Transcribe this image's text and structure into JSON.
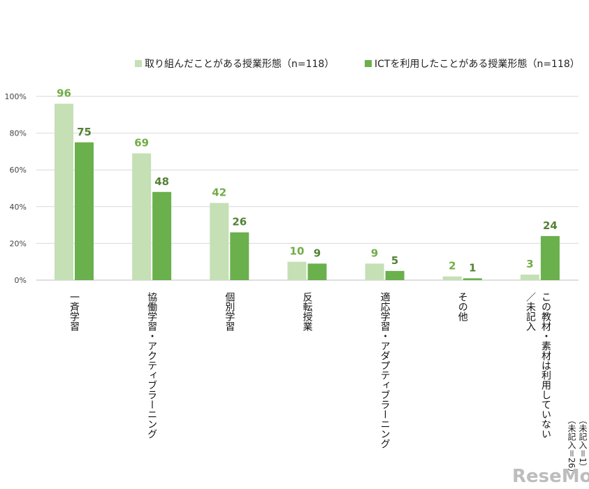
{
  "chart_data": {
    "type": "bar",
    "title": "",
    "xlabel": "",
    "ylabel": "",
    "ylim": [
      0,
      100
    ],
    "yticks": [
      "0%",
      "20%",
      "40%",
      "60%",
      "80%",
      "100%"
    ],
    "grid": true,
    "legend_position": "top-right",
    "categories": [
      "一斉学習",
      "協働学習・アクティブラーニング",
      "個別学習",
      "反転授業",
      "適応学習・アダプティブラーニング",
      "その他",
      "この教材・素材は利用していない／未記入"
    ],
    "series": [
      {
        "name": "取り組んだことがある授業形態（n=118）",
        "color": "#c5e0b4",
        "label_color": "#70ad47",
        "values": [
          96,
          69,
          42,
          10,
          9,
          2,
          3
        ]
      },
      {
        "name": "ICTを利用したことがある授業形態（n=118）",
        "color": "#6ab04c",
        "label_color": "#548235",
        "values": [
          75,
          48,
          26,
          9,
          5,
          1,
          24
        ]
      }
    ]
  },
  "notes": {
    "line1": "（未記入＝1）",
    "line2": "（未記入＝26）"
  },
  "watermark": "ReseMom"
}
